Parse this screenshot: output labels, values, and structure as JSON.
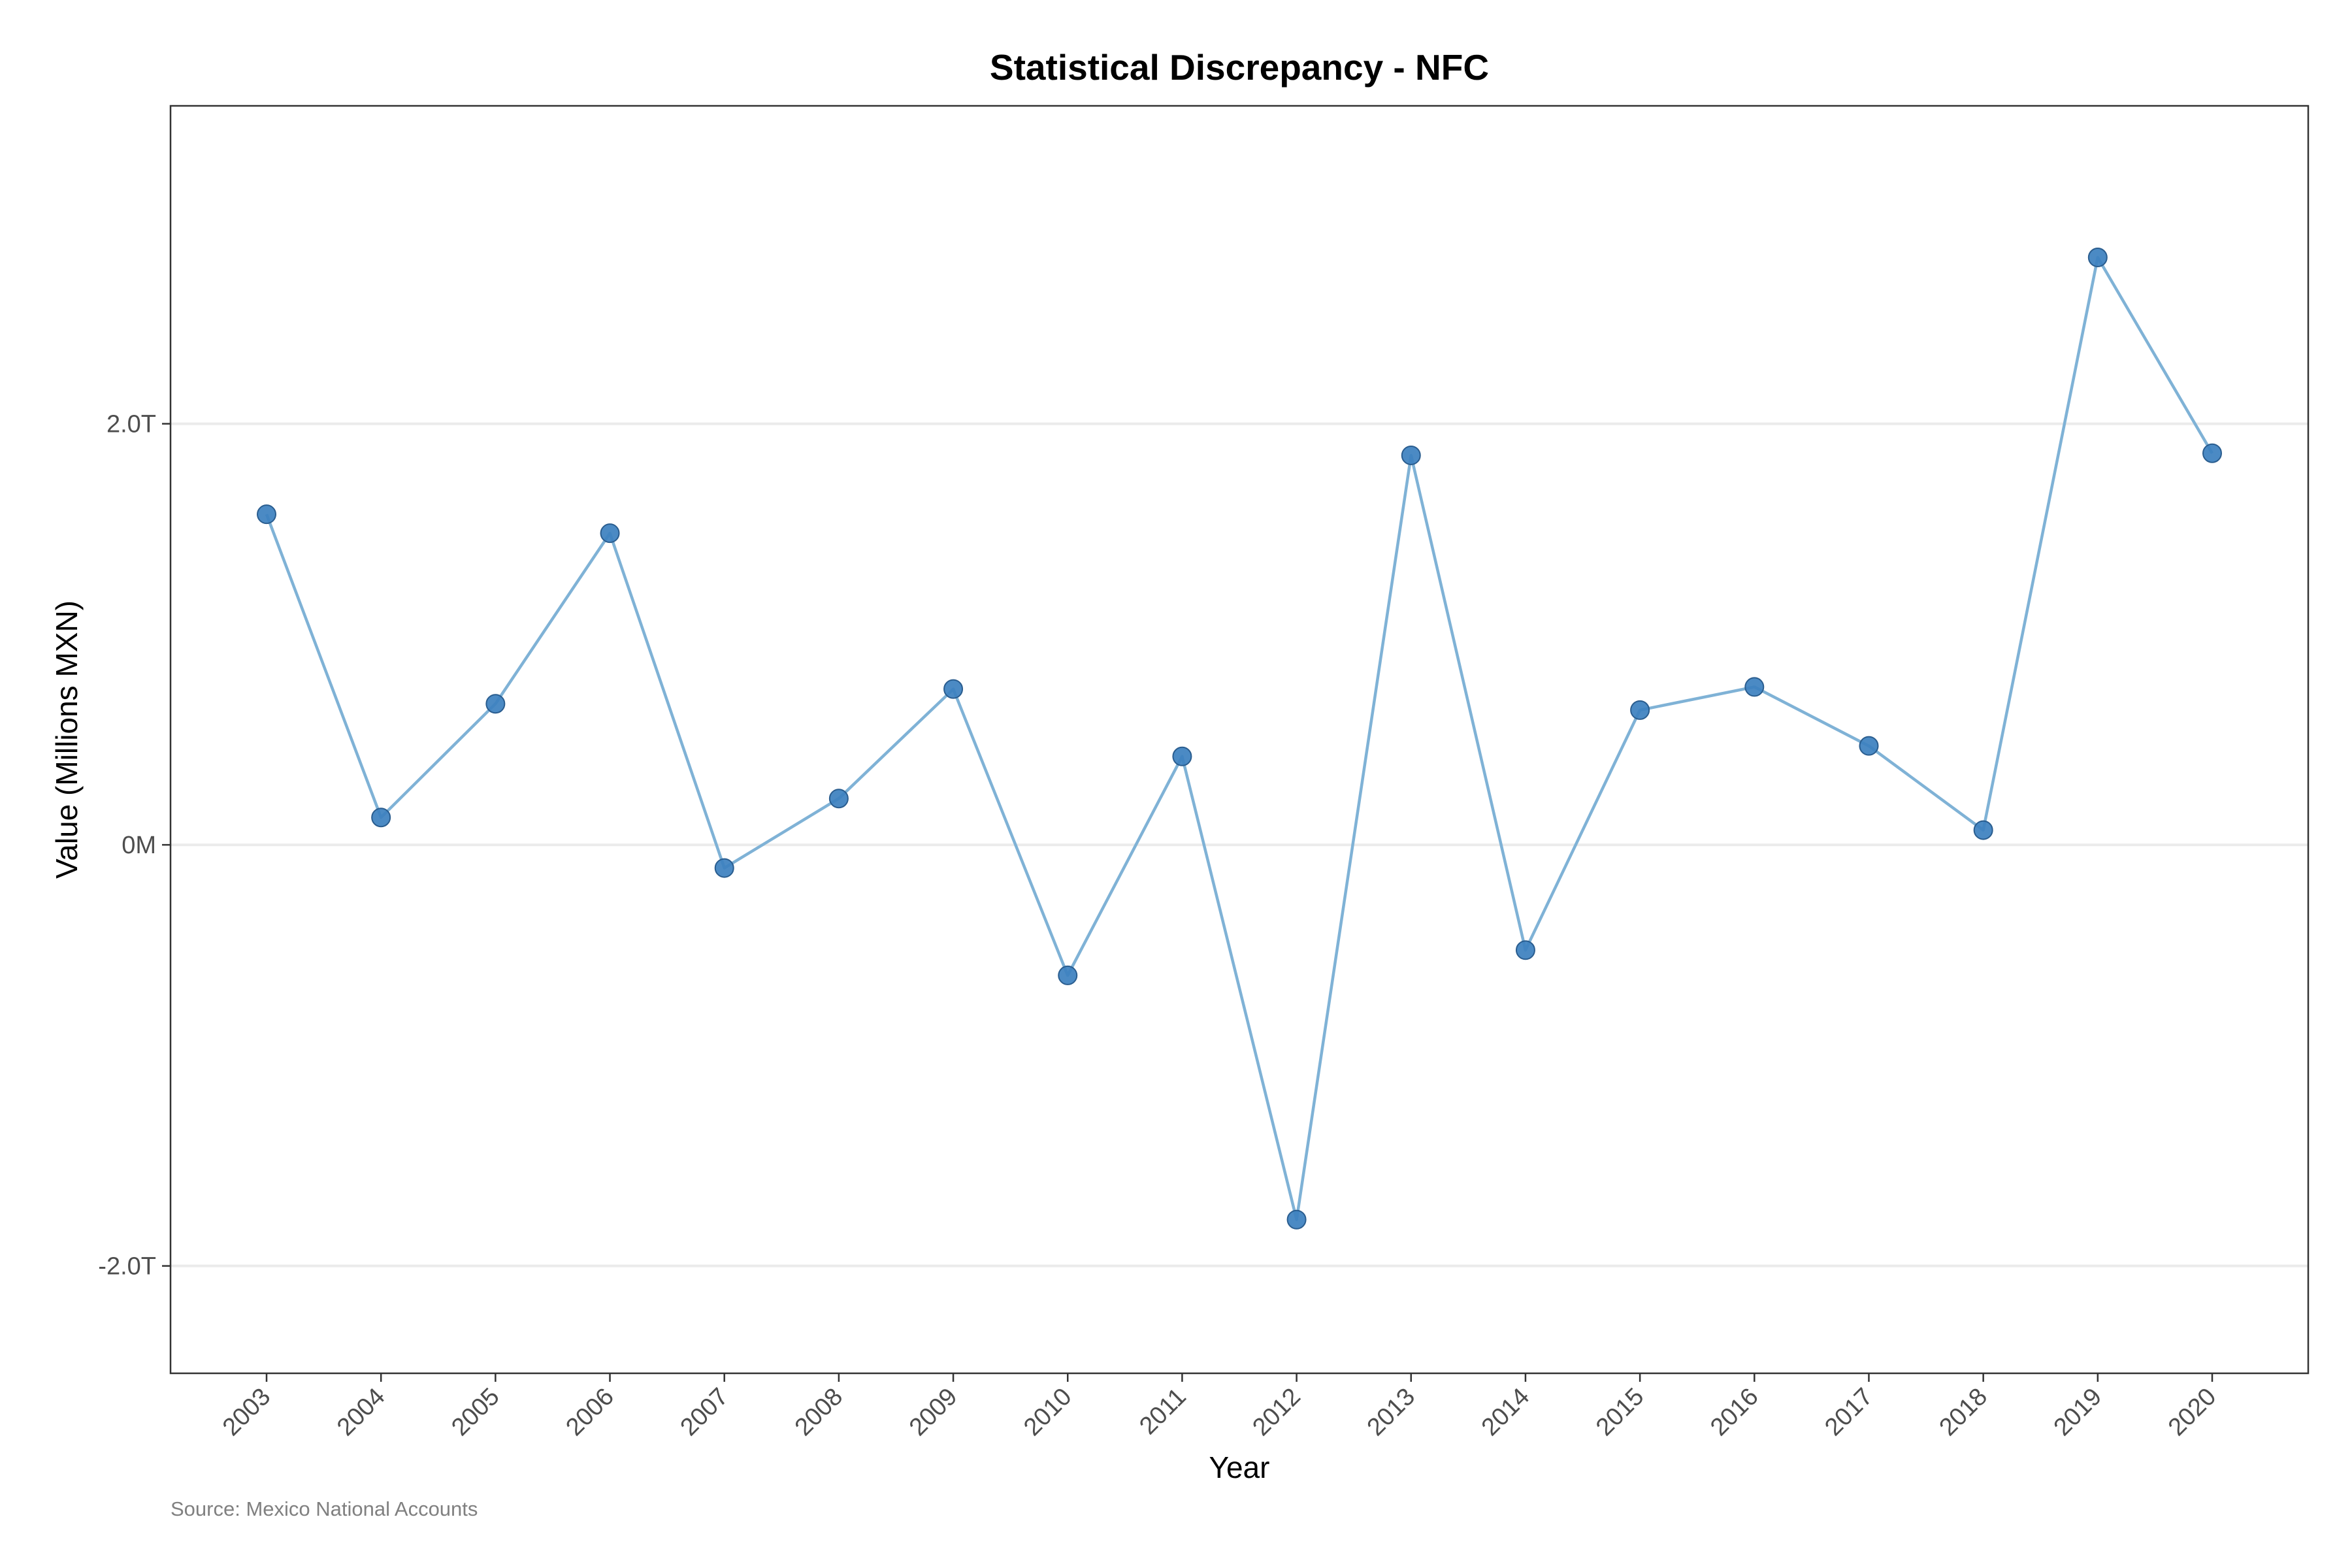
{
  "chart_data": {
    "type": "line",
    "title": "Statistical Discrepancy - NFC",
    "xlabel": "Year",
    "ylabel": "Value (Millions MXN)",
    "caption": "Source: Mexico National Accounts",
    "categories": [
      "2003",
      "2004",
      "2005",
      "2006",
      "2007",
      "2008",
      "2009",
      "2010",
      "2011",
      "2012",
      "2013",
      "2014",
      "2015",
      "2016",
      "2017",
      "2018",
      "2019",
      "2020"
    ],
    "series": [
      {
        "values": [
          1570000,
          130000,
          670000,
          1480000,
          -110000,
          220000,
          740000,
          -620000,
          420000,
          -1780000,
          1850000,
          -500000,
          640000,
          750000,
          470000,
          70000,
          2790000,
          1860000
        ]
      }
    ],
    "ylim": [
      -2510000,
      3510000
    ],
    "yticks": [
      {
        "value": 2000000,
        "label": "2.0T"
      },
      {
        "value": 0,
        "label": "0M"
      },
      {
        "value": -2000000,
        "label": "-2.0T"
      }
    ],
    "grid": "horizontal",
    "line_color": "#7fb2d6",
    "point_color": "#3c80bf",
    "point_edge_color": "#2a5d8f"
  }
}
